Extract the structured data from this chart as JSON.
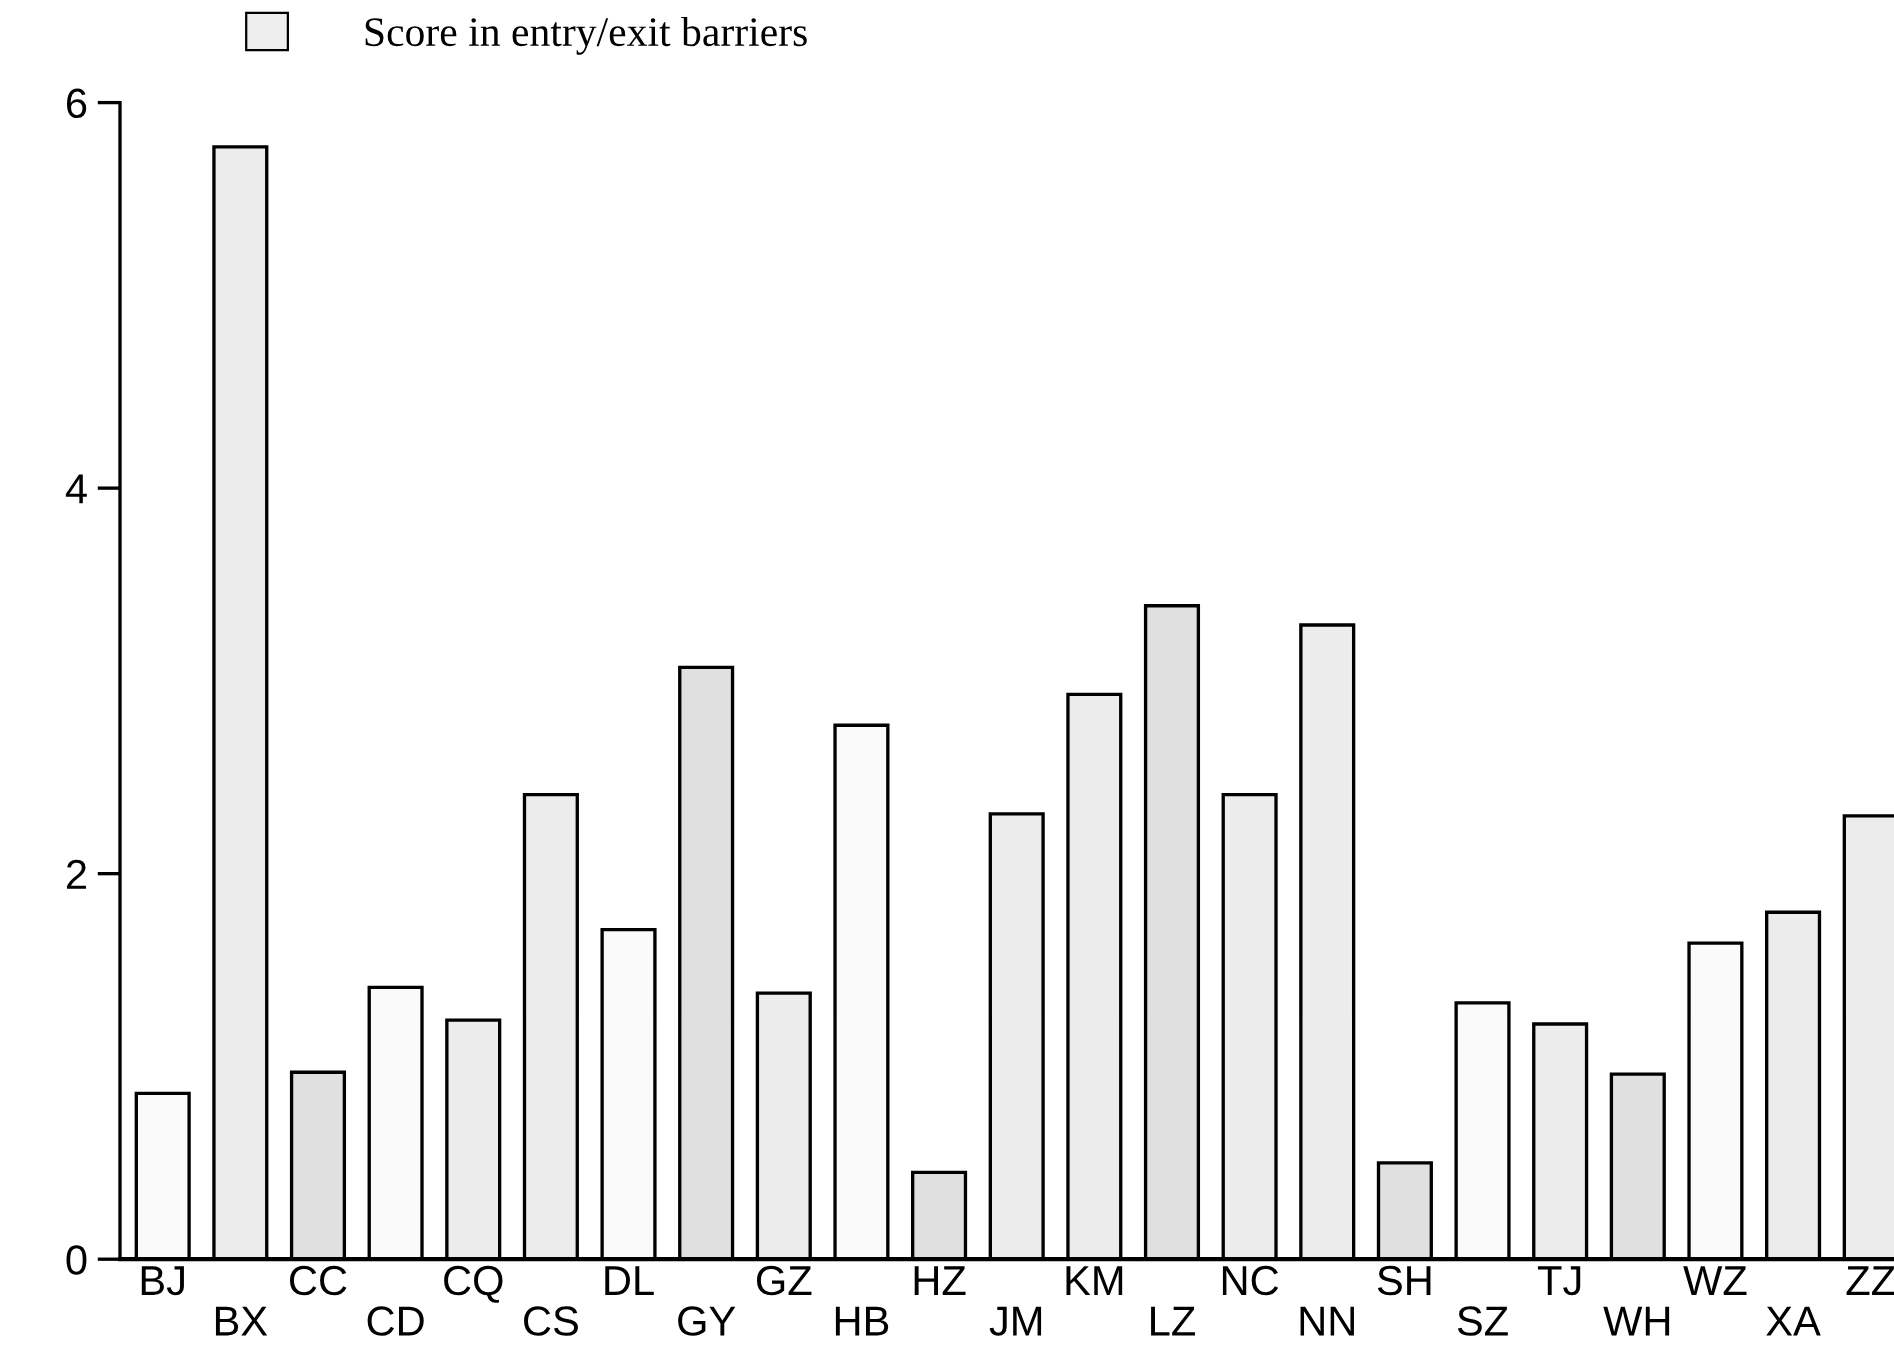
{
  "chart_data": {
    "type": "bar",
    "categories": [
      "BJ",
      "BX",
      "CC",
      "CD",
      "CQ",
      "CS",
      "DL",
      "GY",
      "GZ",
      "HB",
      "HZ",
      "JM",
      "KM",
      "LZ",
      "NC",
      "NN",
      "SH",
      "SZ",
      "TJ",
      "WH",
      "WZ",
      "XA",
      "ZZ"
    ],
    "series": [
      {
        "name": "Score in entry/exit barriers",
        "color": "#eeeeee",
        "colors": [
          "#fafafa",
          "#ececec",
          "#e0e0e0",
          "#fafafa",
          "#ececec",
          "#ececec",
          "#fafafa",
          "#e0e0e0",
          "#ececec",
          "#fafafa",
          "#e0e0e0",
          "#ececec",
          "#ececec",
          "#e0e0e0",
          "#ececec",
          "#ececec",
          "#e0e0e0",
          "#fafafa",
          "#ececec",
          "#e0e0e0",
          "#fafafa",
          "#ececec",
          "#ececec"
        ],
        "values": [
          0.86,
          5.77,
          0.97,
          1.41,
          1.24,
          2.41,
          1.71,
          3.07,
          1.38,
          2.77,
          0.45,
          2.31,
          2.93,
          3.39,
          2.41,
          3.29,
          0.5,
          1.33,
          1.22,
          0.96,
          1.64,
          1.8,
          2.3
        ]
      }
    ],
    "ylim": [
      0,
      6
    ],
    "yticks": [
      0,
      2,
      4,
      6
    ],
    "grid": false,
    "legend": "top left"
  }
}
